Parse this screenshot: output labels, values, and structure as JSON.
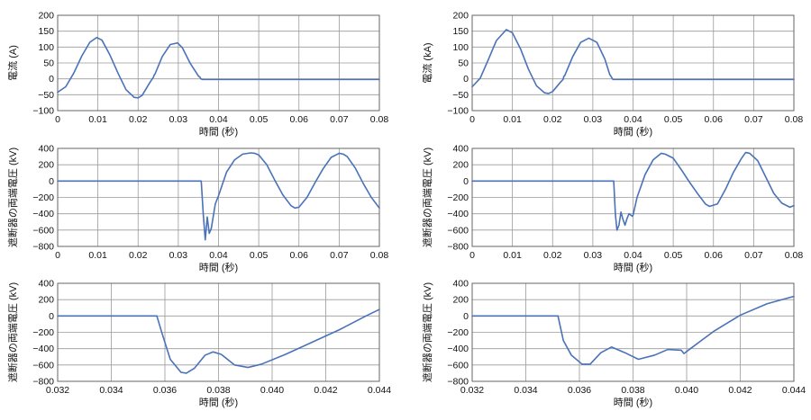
{
  "colors": {
    "line": "#4a72b8",
    "grid": "#9a9a9a",
    "frame": "#666666"
  },
  "chart_data": [
    {
      "type": "line",
      "ylabel": "電流 (A)",
      "xlabel": "時間 (秒)",
      "xlim": [
        0,
        0.08
      ],
      "ylim": [
        -100,
        200
      ],
      "xticks": [
        0,
        0.01,
        0.02,
        0.03,
        0.04,
        0.05,
        0.06,
        0.07,
        0.08
      ],
      "xtick_labels": [
        "0",
        "0.01",
        "0.02",
        "0.03",
        "0.04",
        "0.05",
        "0.06",
        "0.07",
        "0.08"
      ],
      "yticks": [
        -100,
        -50,
        0,
        50,
        100,
        150,
        200
      ],
      "ytick_labels": [
        "−100",
        "−50",
        "0",
        "50",
        "100",
        "150",
        "200"
      ],
      "grid": true,
      "series": [
        {
          "x": [
            0,
            0.002,
            0.004,
            0.006,
            0.008,
            0.0097,
            0.011,
            0.013,
            0.015,
            0.017,
            0.019,
            0.02,
            0.021,
            0.023,
            0.0238,
            0.024,
            0.0242,
            0.026,
            0.028,
            0.0298,
            0.031,
            0.033,
            0.035,
            0.0352,
            0.0354,
            0.0356,
            0.036,
            0.04,
            0.05,
            0.06,
            0.07,
            0.08
          ],
          "y": [
            -42,
            -25,
            18,
            72,
            115,
            130,
            122,
            75,
            18,
            -34,
            -58,
            -60,
            -52,
            -10,
            5,
            12,
            15,
            70,
            108,
            113,
            98,
            48,
            9,
            7,
            5,
            0,
            -2,
            -2,
            -2,
            -2,
            -2,
            -2
          ]
        }
      ]
    },
    {
      "type": "line",
      "ylabel": "電流 (kA)",
      "xlabel": "時間 (秒)",
      "xlim": [
        0,
        0.08
      ],
      "ylim": [
        -100,
        200
      ],
      "xticks": [
        0,
        0.01,
        0.02,
        0.03,
        0.04,
        0.05,
        0.06,
        0.07,
        0.08
      ],
      "xtick_labels": [
        "0",
        "0.01",
        "0.02",
        "0.03",
        "0.04",
        "0.05",
        "0.06",
        "0.07",
        "0.08"
      ],
      "yticks": [
        -100,
        -50,
        0,
        50,
        100,
        150,
        200
      ],
      "ytick_labels": [
        "−100",
        "−50",
        "0",
        "50",
        "100",
        "150",
        "200"
      ],
      "grid": true,
      "series": [
        {
          "x": [
            0,
            0.002,
            0.004,
            0.006,
            0.0085,
            0.01,
            0.012,
            0.014,
            0.016,
            0.018,
            0.019,
            0.02,
            0.022,
            0.0226,
            0.0228,
            0.023,
            0.025,
            0.027,
            0.029,
            0.031,
            0.033,
            0.034,
            0.0342,
            0.0345,
            0.035,
            0.04,
            0.05,
            0.06,
            0.07,
            0.08
          ],
          "y": [
            -25,
            2,
            60,
            120,
            155,
            145,
            95,
            30,
            -22,
            -44,
            -46,
            -40,
            -10,
            -2,
            8,
            10,
            70,
            115,
            128,
            115,
            62,
            22,
            14,
            8,
            -2,
            -2,
            -2,
            -2,
            -2,
            -2
          ]
        }
      ]
    },
    {
      "type": "line",
      "ylabel": "遮断器の両端電圧 (kV)",
      "xlabel": "時間 (秒)",
      "xlim": [
        0,
        0.08
      ],
      "ylim": [
        -800,
        400
      ],
      "xticks": [
        0,
        0.01,
        0.02,
        0.03,
        0.04,
        0.05,
        0.06,
        0.07,
        0.08
      ],
      "xtick_labels": [
        "0",
        "0.01",
        "0.02",
        "0.03",
        "0.04",
        "0.05",
        "0.06",
        "0.07",
        "0.08"
      ],
      "yticks": [
        -800,
        -600,
        -400,
        -200,
        0,
        200,
        400
      ],
      "ytick_labels": [
        "−800",
        "−600",
        "−400",
        "−200",
        "0",
        "200",
        "400"
      ],
      "grid": true,
      "series": [
        {
          "x": [
            0,
            0.0357,
            0.0362,
            0.0367,
            0.0372,
            0.0377,
            0.0382,
            0.0387,
            0.0392,
            0.04,
            0.042,
            0.044,
            0.046,
            0.048,
            0.049,
            0.05,
            0.052,
            0.054,
            0.056,
            0.058,
            0.059,
            0.06,
            0.062,
            0.064,
            0.066,
            0.068,
            0.07,
            0.071,
            0.072,
            0.074,
            0.076,
            0.078,
            0.08
          ],
          "y": [
            0,
            0,
            -400,
            -720,
            -440,
            -640,
            -580,
            -430,
            -280,
            -180,
            110,
            260,
            330,
            345,
            340,
            320,
            200,
            10,
            -170,
            -300,
            -330,
            -320,
            -200,
            -20,
            150,
            290,
            340,
            330,
            300,
            160,
            -30,
            -200,
            -330
          ]
        }
      ]
    },
    {
      "type": "line",
      "ylabel": "遮断器の両端電圧 (kV)",
      "xlabel": "時間 (秒)",
      "xlim": [
        0,
        0.08
      ],
      "ylim": [
        -800,
        400
      ],
      "xticks": [
        0,
        0.01,
        0.02,
        0.03,
        0.04,
        0.05,
        0.06,
        0.07,
        0.08
      ],
      "xtick_labels": [
        "0",
        "0.01",
        "0.02",
        "0.03",
        "0.04",
        "0.05",
        "0.06",
        "0.07",
        "0.08"
      ],
      "yticks": [
        -800,
        -600,
        -400,
        -200,
        0,
        200,
        400
      ],
      "ytick_labels": [
        "−800",
        "−600",
        "−400",
        "−200",
        "0",
        "200",
        "400"
      ],
      "grid": true,
      "series": [
        {
          "x": [
            0,
            0.0352,
            0.0356,
            0.036,
            0.0365,
            0.037,
            0.0375,
            0.038,
            0.0385,
            0.039,
            0.0398,
            0.04,
            0.041,
            0.043,
            0.045,
            0.047,
            0.048,
            0.05,
            0.052,
            0.054,
            0.056,
            0.058,
            0.059,
            0.061,
            0.063,
            0.065,
            0.067,
            0.068,
            0.069,
            0.071,
            0.073,
            0.075,
            0.077,
            0.079,
            0.08
          ],
          "y": [
            0,
            0,
            -400,
            -600,
            -540,
            -380,
            -470,
            -540,
            -460,
            -400,
            -430,
            -420,
            -200,
            80,
            260,
            340,
            330,
            280,
            140,
            -10,
            -150,
            -280,
            -310,
            -280,
            -100,
            110,
            280,
            350,
            340,
            250,
            50,
            -150,
            -270,
            -320,
            -300
          ]
        }
      ]
    },
    {
      "type": "line",
      "ylabel": "遮断器の両端電圧 (kV)",
      "xlabel": "時間 (秒)",
      "xlim": [
        0.032,
        0.044
      ],
      "ylim": [
        -800,
        400
      ],
      "xticks": [
        0.032,
        0.034,
        0.036,
        0.038,
        0.04,
        0.042,
        0.044
      ],
      "xtick_labels": [
        "0.032",
        "0.034",
        "0.036",
        "0.038",
        "0.040",
        "0.042",
        "0.044"
      ],
      "yticks": [
        -800,
        -600,
        -400,
        -200,
        0,
        200,
        400
      ],
      "ytick_labels": [
        "−800",
        "−600",
        "−400",
        "−200",
        "0",
        "200",
        "400"
      ],
      "grid": true,
      "series": [
        {
          "x": [
            0.032,
            0.0357,
            0.0359,
            0.0362,
            0.0366,
            0.0368,
            0.0371,
            0.0375,
            0.0378,
            0.0381,
            0.0386,
            0.0391,
            0.0396,
            0.0405,
            0.0415,
            0.0425,
            0.0435,
            0.044
          ],
          "y": [
            0,
            0,
            -220,
            -530,
            -690,
            -700,
            -640,
            -480,
            -440,
            -470,
            -600,
            -630,
            -590,
            -470,
            -320,
            -170,
            0,
            80
          ]
        }
      ]
    },
    {
      "type": "line",
      "ylabel": "遮断器の両端電圧 (kV)",
      "xlabel": "時間 (秒)",
      "xlim": [
        0.032,
        0.044
      ],
      "ylim": [
        -800,
        400
      ],
      "xticks": [
        0.032,
        0.034,
        0.036,
        0.038,
        0.04,
        0.042,
        0.044
      ],
      "xtick_labels": [
        "0.032",
        "0.034",
        "0.036",
        "0.038",
        "0.040",
        "0.042",
        "0.044"
      ],
      "yticks": [
        -800,
        -600,
        -400,
        -200,
        0,
        200,
        400
      ],
      "ytick_labels": [
        "−800",
        "−600",
        "−400",
        "−200",
        "0",
        "200",
        "400"
      ],
      "grid": true,
      "series": [
        {
          "x": [
            0.032,
            0.0352,
            0.0354,
            0.0357,
            0.0361,
            0.0364,
            0.0368,
            0.0372,
            0.0377,
            0.0382,
            0.0388,
            0.0393,
            0.0398,
            0.0399,
            0.0401,
            0.041,
            0.042,
            0.043,
            0.044
          ],
          "y": [
            0,
            0,
            -300,
            -480,
            -590,
            -590,
            -450,
            -380,
            -450,
            -530,
            -480,
            -410,
            -420,
            -460,
            -410,
            -190,
            10,
            150,
            240
          ]
        }
      ]
    }
  ]
}
